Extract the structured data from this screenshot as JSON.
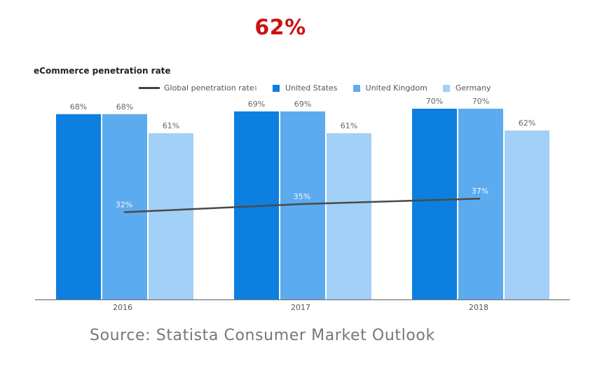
{
  "headline": "62%",
  "source": "Source: Statista Consumer Market Outlook",
  "chart_data": {
    "type": "bar",
    "title": "eCommerce penetration rate",
    "xlabel": "",
    "ylabel": "",
    "ylim": [
      0,
      70
    ],
    "grid": false,
    "legend_position": "top",
    "categories": [
      "2016",
      "2017",
      "2018"
    ],
    "series": [
      {
        "name": "United States",
        "color": "#0c7fe0",
        "values": [
          68,
          69,
          70
        ],
        "labels": [
          "68%",
          "69%",
          "70%"
        ]
      },
      {
        "name": "United Kingdom",
        "color": "#5dabef",
        "values": [
          68,
          69,
          70
        ],
        "labels": [
          "68%",
          "69%",
          "70%"
        ]
      },
      {
        "name": "Germany",
        "color": "#a3d0f7",
        "values": [
          61,
          61,
          62
        ],
        "labels": [
          "61%",
          "61%",
          "62%"
        ]
      }
    ],
    "line_series": {
      "name": "Global penetration rate",
      "name_suffix": "1",
      "color": "#4a4a4a",
      "values": [
        32,
        35,
        37
      ],
      "labels": [
        "32%",
        "35%",
        "37%"
      ]
    }
  }
}
